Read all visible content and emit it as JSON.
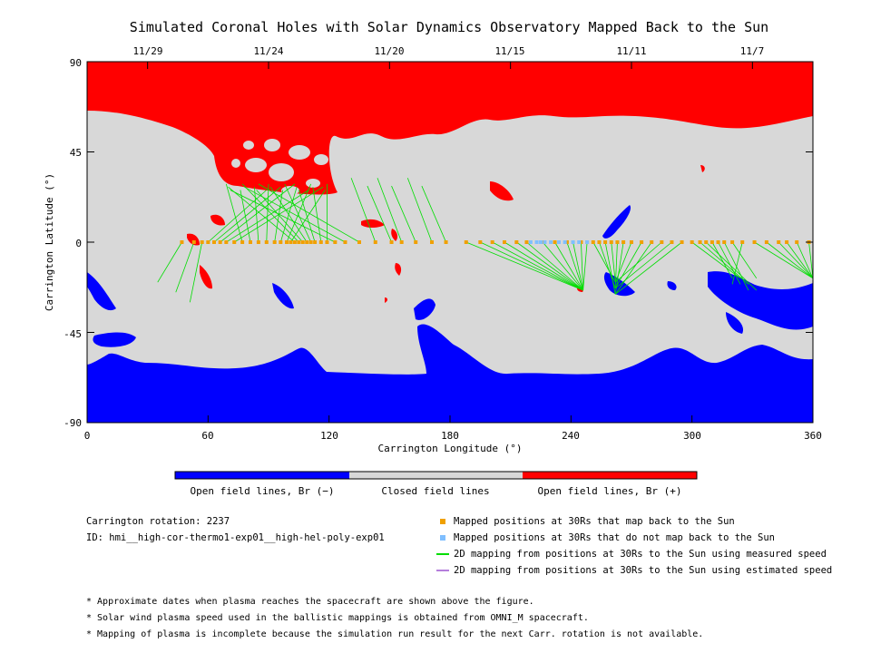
{
  "chart_data": {
    "type": "heatmap",
    "title": "Simulated Coronal Holes with Solar Dynamics Observatory Mapped Back to the Sun",
    "xlabel": "Carrington Longitude (°)",
    "ylabel": "Carrington Latitude (°)",
    "xlim": [
      0,
      360
    ],
    "ylim": [
      -90,
      90
    ],
    "x_ticks": [
      "0",
      "60",
      "120",
      "180",
      "240",
      "300",
      "360"
    ],
    "y_ticks": [
      "-90",
      "-45",
      "0",
      "45",
      "90"
    ],
    "top_axis": {
      "labels": [
        "11/29",
        "11/24",
        "11/20",
        "11/15",
        "11/11",
        "11/7"
      ],
      "longitudes": [
        30,
        90,
        150,
        210,
        270,
        330
      ]
    },
    "colorbar": {
      "labels": [
        "Open field lines, Br (−)",
        "Closed field lines",
        "Open field lines, Br (+)"
      ]
    },
    "colors": {
      "open_negative": "#0000ff",
      "closed": "#d8d8d8",
      "open_positive": "#ff0000",
      "mapped": "#f0a000",
      "unmapped": "#7fbfff",
      "measured_line": "#00dd00",
      "estimated_line": "#b57edc"
    },
    "mapped_lon": [
      47,
      53,
      57,
      60,
      63,
      66,
      69,
      73,
      77,
      81,
      85,
      89,
      93,
      96,
      99,
      101,
      103,
      105,
      107,
      109,
      111,
      113,
      116,
      119,
      123,
      128,
      135,
      143,
      151,
      156,
      163,
      171,
      178,
      188,
      195,
      201,
      207,
      213,
      218,
      226,
      232,
      238,
      241,
      245,
      248,
      251,
      254,
      257,
      260,
      263,
      266,
      270,
      275,
      280,
      285,
      290,
      295,
      300,
      304,
      307,
      310,
      313,
      316,
      320,
      325,
      331,
      337,
      343,
      347,
      352,
      358
    ],
    "unmapped_lon": [
      220,
      223,
      225,
      227,
      230,
      234,
      237,
      241,
      244,
      248
    ],
    "footpoint_lon": [
      0,
      6,
      9,
      60,
      61,
      62,
      63,
      64,
      65,
      66,
      67,
      68,
      69,
      70,
      71,
      72,
      73,
      74,
      75,
      76,
      77,
      78,
      79,
      80,
      81,
      82,
      83,
      84,
      85,
      86,
      87,
      88,
      89,
      90,
      91,
      92,
      93,
      94,
      95,
      96,
      97,
      98,
      99,
      100,
      101,
      102,
      103,
      104,
      105,
      106,
      107,
      108,
      109,
      110,
      111,
      112,
      113,
      114,
      115,
      116,
      117,
      118,
      119,
      120
    ]
  },
  "panel": {
    "rotation": "Carrington rotation: 2237",
    "run_id": "ID: hmi__high-cor-thermo1-exp01__high-hel-poly-exp01"
  },
  "legend": {
    "mapped": "Mapped positions at 30Rs that map back to the Sun",
    "unmapped": "Mapped positions at 30Rs that do not map back to the Sun",
    "measured": "2D mapping from positions at 30Rs to the Sun using measured speed",
    "estimated": "2D mapping from positions at 30Rs to the Sun using estimated speed"
  },
  "notes": [
    "* Approximate dates when plasma reaches the spacecraft are shown above the figure.",
    "* Solar wind plasma speed used in the ballistic mappings is obtained from OMNI_M spacecraft.",
    "* Mapping of plasma is incomplete because the simulation run result for the next Carr. rotation is not available."
  ]
}
